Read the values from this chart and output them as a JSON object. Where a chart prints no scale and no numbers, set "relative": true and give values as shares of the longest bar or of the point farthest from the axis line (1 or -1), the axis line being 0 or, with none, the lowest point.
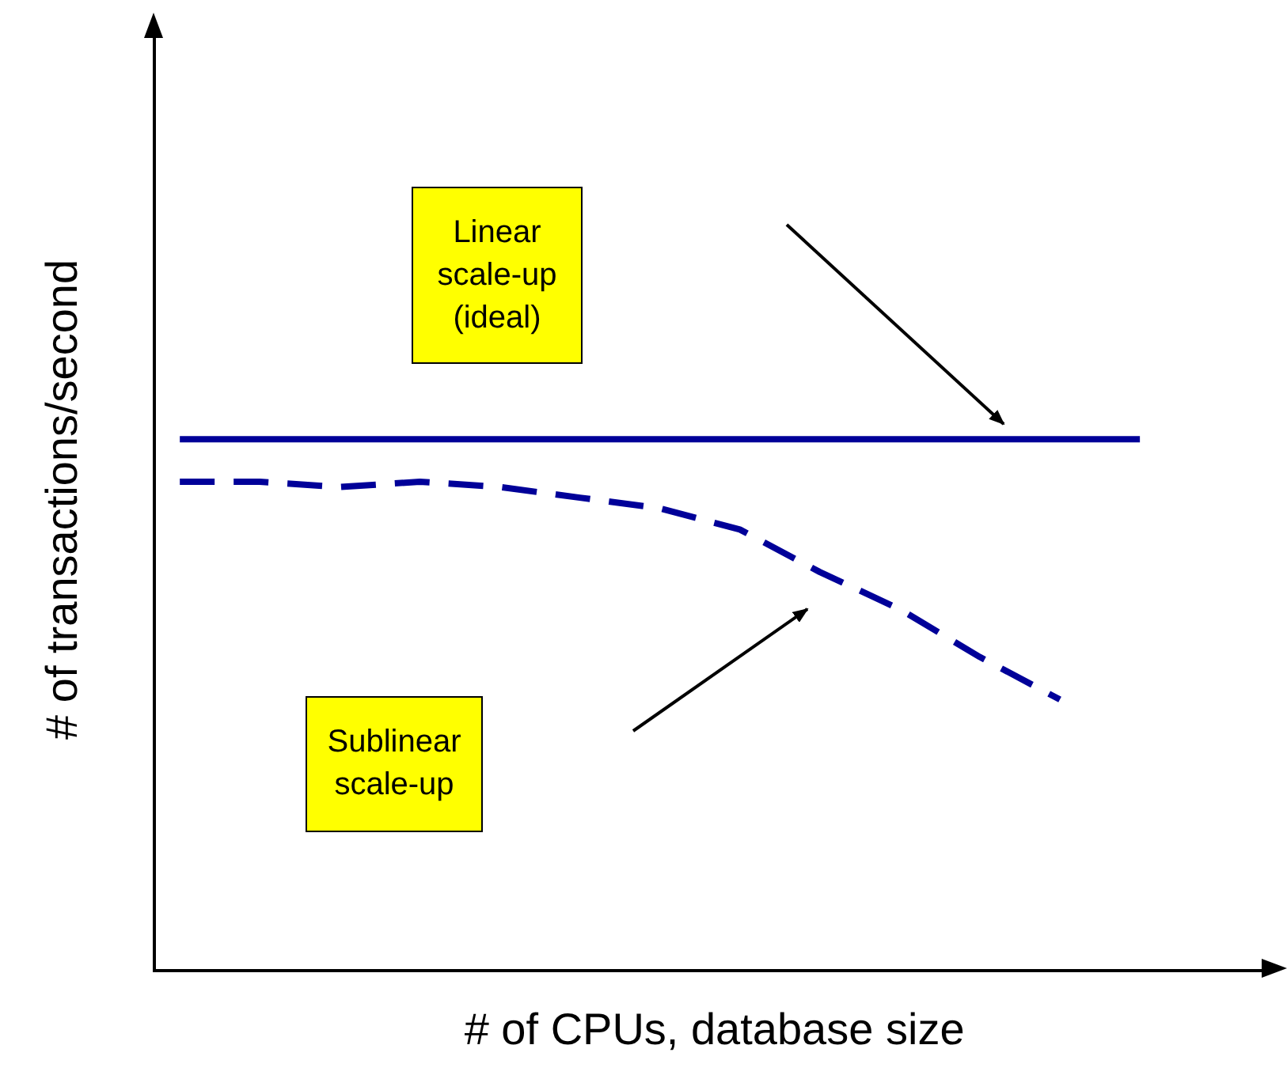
{
  "chart_data": {
    "type": "line",
    "relative": true,
    "xlabel": "# of CPUs, database size",
    "ylabel": "# of transactions/second",
    "categories": [
      null,
      null,
      null,
      null,
      null,
      null,
      null,
      null,
      null,
      null,
      null,
      null,
      null
    ],
    "series": [
      {
        "color": "#000099",
        "line_style": "solid",
        "values": [
          1,
          1,
          1,
          1,
          1,
          1,
          1,
          1,
          1,
          1,
          1,
          1,
          1
        ]
      },
      {
        "color": "#000099",
        "line_style": "dashed",
        "values": [
          0.92,
          0.92,
          0.91,
          0.92,
          0.91,
          0.89,
          0.87,
          0.83,
          0.75,
          0.68,
          0.59,
          0.51,
          null
        ]
      }
    ],
    "marker": "none",
    "grid": false,
    "legend": false,
    "annotations": [
      "Linear scale-up (ideal)",
      "Sublinear scale-up"
    ]
  }
}
